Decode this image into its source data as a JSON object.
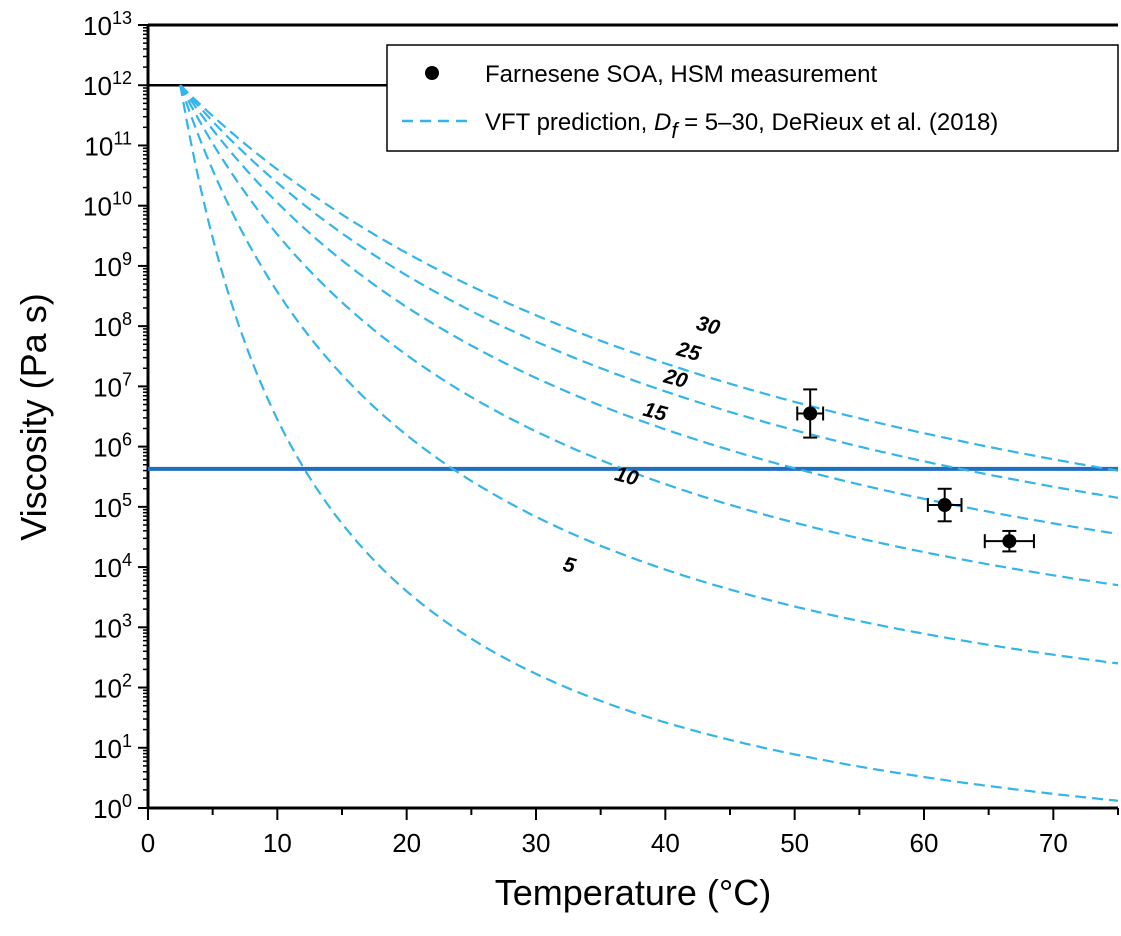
{
  "chart_data": {
    "type": "scatter",
    "xlabel": "Temperature (°C)",
    "ylabel": "Viscosity (Pa s)",
    "xlim": [
      0,
      75
    ],
    "ylim_log10": [
      0,
      13
    ],
    "y_scale": "log",
    "x_ticks": [
      "0",
      "10",
      "20",
      "30",
      "40",
      "50",
      "60",
      "70"
    ],
    "y_tick_exponents": [
      "0",
      "1",
      "2",
      "3",
      "4",
      "5",
      "6",
      "7",
      "8",
      "9",
      "10",
      "11",
      "12",
      "13"
    ],
    "y_tick_base": "10",
    "grid": false,
    "legend_position": "top-right",
    "legend": {
      "measurement": "Farnesene SOA, HSM measurement",
      "prediction_prefix": "VFT prediction, ",
      "prediction_symbol": "D",
      "prediction_subscript": "f",
      "prediction_suffix": " = 5–30, DeRieux et al. (2018)"
    },
    "colors": {
      "measurement": "#000000",
      "prediction": "#33b5ec",
      "reference_1e12": "#000000",
      "reference_blue": "#1f6fc0"
    },
    "reference_lines": [
      {
        "name": "1e12",
        "log10_y": 12.0,
        "x_from": 0,
        "x_to": 75
      },
      {
        "name": "blue",
        "log10_y": 5.63,
        "x_from": 0,
        "x_to": 75
      }
    ],
    "measurements": [
      {
        "x": 51.2,
        "log10_y": 6.55,
        "xerr": 1.0,
        "log10_yerr_low": 0.4,
        "log10_yerr_high": 0.4
      },
      {
        "x": 61.6,
        "log10_y": 5.03,
        "xerr": 1.3,
        "log10_yerr_low": 0.27,
        "log10_yerr_high": 0.27
      },
      {
        "x": 66.6,
        "log10_y": 4.43,
        "xerr": 1.9,
        "log10_yerr_low": 0.17,
        "log10_yerr_high": 0.17
      }
    ],
    "series": [
      {
        "label": "5",
        "D": 5,
        "T0": 2.5,
        "log10_y_at_75": 0.12,
        "label_at": {
          "x": 32.0,
          "log10_y": 3.95
        }
      },
      {
        "label": "10",
        "D": 10,
        "T0": 2.5,
        "log10_y_at_75": 2.4,
        "label_at": {
          "x": 36.0,
          "log10_y": 5.45
        }
      },
      {
        "label": "15",
        "D": 15,
        "T0": 2.5,
        "log10_y_at_75": 3.7,
        "label_at": {
          "x": 38.2,
          "log10_y": 6.52
        }
      },
      {
        "label": "20",
        "D": 20,
        "T0": 2.5,
        "log10_y_at_75": 4.55,
        "label_at": {
          "x": 39.8,
          "log10_y": 7.07
        }
      },
      {
        "label": "25",
        "D": 25,
        "T0": 2.5,
        "log10_y_at_75": 5.15,
        "label_at": {
          "x": 40.8,
          "log10_y": 7.52
        }
      },
      {
        "label": "30",
        "D": 30,
        "T0": 2.5,
        "log10_y_at_75": 5.6,
        "label_at": {
          "x": 42.3,
          "log10_y": 7.95
        }
      }
    ]
  }
}
